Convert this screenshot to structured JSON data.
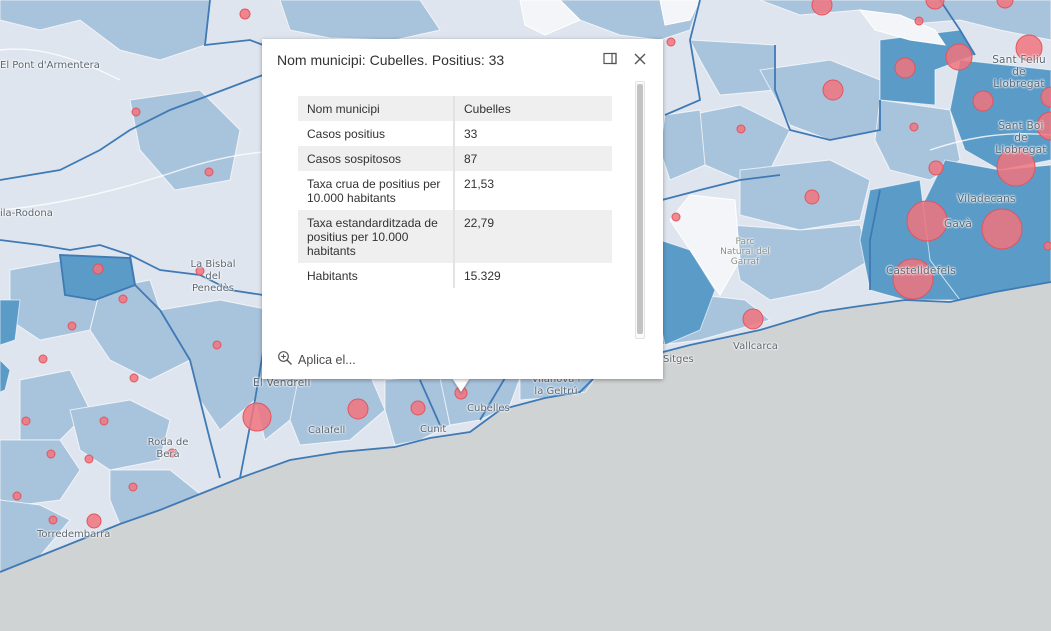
{
  "popup": {
    "title": "Nom municipi: Cubelles. Positius: 33",
    "rows": [
      {
        "label": "Nom municipi",
        "value": "Cubelles"
      },
      {
        "label": "Casos positius",
        "value": "33"
      },
      {
        "label": "Casos sospitosos",
        "value": "87"
      },
      {
        "label": "Taxa crua de positius per 10.000 habitants",
        "value": "21,53"
      },
      {
        "label": "Taxa estandarditzada de positius per 10.000 habitants",
        "value": "22,79"
      },
      {
        "label": "Habitants",
        "value": "15.329"
      }
    ],
    "zoom_action": "Aplica el..."
  },
  "map": {
    "places": [
      "El Pont d'Armentera",
      "ila-Rodona",
      "La Bisbal del Penedès",
      "El Vendrell",
      "Calafell",
      "Cunit",
      "Cubelles",
      "Vilanova i la Geltrú",
      "Roda de Berà",
      "Torredembarra",
      "Sitges",
      "Vallcarca",
      "Parc Natural del Garraf",
      "Castelldefels",
      "Gavà",
      "Viladecans",
      "Sant Boi de Llobregat",
      "Sant Feliu de Llobregat"
    ],
    "colors": {
      "sea": "#d0d3d3",
      "land_light": "#e3e8f1",
      "land_mid": "#a9c4dd",
      "land_dark": "#5a9bc8",
      "border": "#3f7ab5",
      "circle": "#f1747e"
    }
  }
}
